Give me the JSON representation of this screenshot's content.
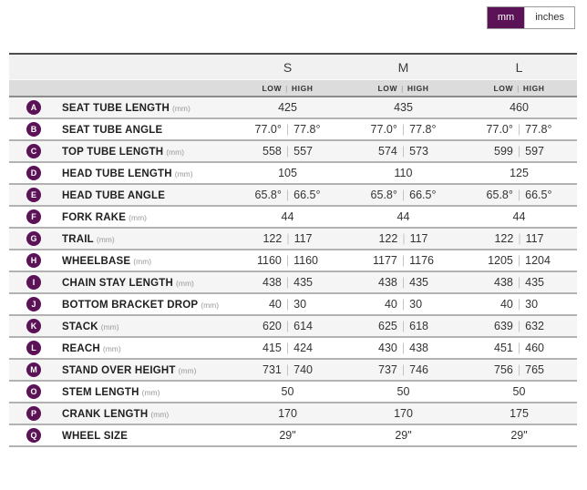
{
  "unit_toggle": {
    "options": [
      {
        "label": "mm",
        "selected": true
      },
      {
        "label": "inches",
        "selected": false
      }
    ]
  },
  "colors": {
    "accent_purple": "#5c1257",
    "header_bg": "#f1f1f1",
    "subheader_bg": "#dcdcdc",
    "row_stripe": "#f5f5f5"
  },
  "table": {
    "size_columns": [
      "S",
      "M",
      "L"
    ],
    "subheader_low": "LOW",
    "subheader_high": "HIGH",
    "value_separator": "|",
    "rows": [
      {
        "letter": "A",
        "label": "SEAT TUBE LENGTH",
        "unit": "(mm)",
        "values": [
          [
            "425"
          ],
          [
            "435"
          ],
          [
            "460"
          ]
        ]
      },
      {
        "letter": "B",
        "label": "SEAT TUBE ANGLE",
        "unit": "",
        "values": [
          [
            "77.0°",
            "77.8°"
          ],
          [
            "77.0°",
            "77.8°"
          ],
          [
            "77.0°",
            "77.8°"
          ]
        ]
      },
      {
        "letter": "C",
        "label": "TOP TUBE LENGTH",
        "unit": "(mm)",
        "values": [
          [
            "558",
            "557"
          ],
          [
            "574",
            "573"
          ],
          [
            "599",
            "597"
          ]
        ]
      },
      {
        "letter": "D",
        "label": "HEAD TUBE LENGTH",
        "unit": "(mm)",
        "values": [
          [
            "105"
          ],
          [
            "110"
          ],
          [
            "125"
          ]
        ]
      },
      {
        "letter": "E",
        "label": "HEAD TUBE ANGLE",
        "unit": "",
        "values": [
          [
            "65.8°",
            "66.5°"
          ],
          [
            "65.8°",
            "66.5°"
          ],
          [
            "65.8°",
            "66.5°"
          ]
        ]
      },
      {
        "letter": "F",
        "label": "FORK RAKE",
        "unit": "(mm)",
        "values": [
          [
            "44"
          ],
          [
            "44"
          ],
          [
            "44"
          ]
        ]
      },
      {
        "letter": "G",
        "label": "TRAIL",
        "unit": "(mm)",
        "values": [
          [
            "122",
            "117"
          ],
          [
            "122",
            "117"
          ],
          [
            "122",
            "117"
          ]
        ]
      },
      {
        "letter": "H",
        "label": "WHEELBASE",
        "unit": "(mm)",
        "values": [
          [
            "1160",
            "1160"
          ],
          [
            "1177",
            "1176"
          ],
          [
            "1205",
            "1204"
          ]
        ]
      },
      {
        "letter": "I",
        "label": "CHAIN STAY LENGTH",
        "unit": "(mm)",
        "values": [
          [
            "438",
            "435"
          ],
          [
            "438",
            "435"
          ],
          [
            "438",
            "435"
          ]
        ]
      },
      {
        "letter": "J",
        "label": "BOTTOM BRACKET DROP",
        "unit": "(mm)",
        "values": [
          [
            "40",
            "30"
          ],
          [
            "40",
            "30"
          ],
          [
            "40",
            "30"
          ]
        ]
      },
      {
        "letter": "K",
        "label": "STACK",
        "unit": "(mm)",
        "values": [
          [
            "620",
            "614"
          ],
          [
            "625",
            "618"
          ],
          [
            "639",
            "632"
          ]
        ]
      },
      {
        "letter": "L",
        "label": "REACH",
        "unit": "(mm)",
        "values": [
          [
            "415",
            "424"
          ],
          [
            "430",
            "438"
          ],
          [
            "451",
            "460"
          ]
        ]
      },
      {
        "letter": "M",
        "label": "STAND OVER HEIGHT",
        "unit": "(mm)",
        "values": [
          [
            "731",
            "740"
          ],
          [
            "737",
            "746"
          ],
          [
            "756",
            "765"
          ]
        ]
      },
      {
        "letter": "O",
        "label": "STEM LENGTH",
        "unit": "(mm)",
        "values": [
          [
            "50"
          ],
          [
            "50"
          ],
          [
            "50"
          ]
        ]
      },
      {
        "letter": "P",
        "label": "CRANK LENGTH",
        "unit": "(mm)",
        "values": [
          [
            "170"
          ],
          [
            "170"
          ],
          [
            "175"
          ]
        ]
      },
      {
        "letter": "Q",
        "label": "WHEEL SIZE",
        "unit": "",
        "values": [
          [
            "29\""
          ],
          [
            "29\""
          ],
          [
            "29\""
          ]
        ]
      }
    ]
  }
}
